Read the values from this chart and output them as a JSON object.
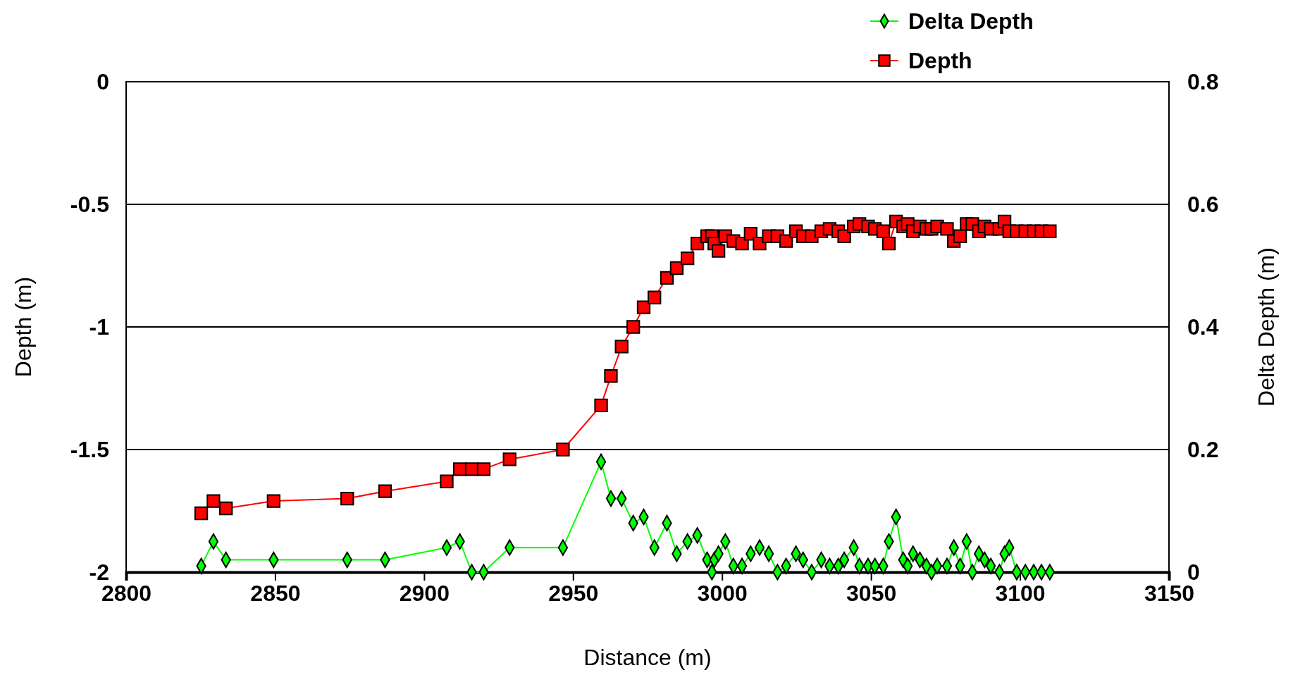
{
  "chart_data": {
    "type": "line",
    "xlabel": "Distance (m)",
    "ylabel": "Depth (m)",
    "y2label": "Delta Depth (m)",
    "xlim": [
      2800,
      3150
    ],
    "xticks": [
      2800,
      2850,
      2900,
      2950,
      3000,
      3050,
      3100,
      3150
    ],
    "ylim": [
      -2,
      0
    ],
    "yticks": [
      -2,
      -1.5,
      -1,
      -0.5,
      0
    ],
    "y2lim": [
      0,
      0.8
    ],
    "y2ticks": [
      0,
      0.2,
      0.4,
      0.6,
      0.8
    ],
    "grid": "y",
    "legend": "top right",
    "line_style": "solid",
    "series": [
      {
        "name": "Delta Depth",
        "color": "#00ff00",
        "axis": "y2",
        "marker": "diamond",
        "x": [
          2825.2,
          2829.3,
          2833.5,
          2849.5,
          2874.2,
          2886.9,
          2907.6,
          2912,
          2916,
          2920,
          2928.7,
          2946.6,
          2959.4,
          2962.7,
          2966.3,
          2970.2,
          2973.7,
          2977.3,
          2981.5,
          2984.8,
          2988.4,
          2991.7,
          2995.0,
          2996.6,
          2997.4,
          2998.8,
          3001.1,
          3003.8,
          3006.7,
          3009.6,
          3012.6,
          3015.7,
          3018.6,
          3021.5,
          3024.8,
          3027.2,
          3030.1,
          3033.3,
          3036.1,
          3039.0,
          3041.0,
          3044.2,
          3046.1,
          3049.0,
          3051.3,
          3054.1,
          3056.0,
          3058.4,
          3060.8,
          3062.3,
          3064.1,
          3066.4,
          3068.6,
          3070.3,
          3072.2,
          3075.5,
          3077.8,
          3079.9,
          3082.1,
          3084.0,
          3086.2,
          3088.1,
          3090.2,
          3093.1,
          3094.8,
          3096.4,
          3098.9,
          3101.8,
          3104.6,
          3107.2,
          3110.0
        ],
        "values": [
          0.01,
          0.05,
          0.02,
          0.02,
          0.02,
          0.02,
          0.04,
          0.05,
          0,
          0,
          0.04,
          0.04,
          0.18,
          0.12,
          0.12,
          0.08,
          0.09,
          0.04,
          0.08,
          0.03,
          0.05,
          0.06,
          0.02,
          0,
          0.02,
          0.03,
          0.05,
          0.01,
          0.01,
          0.03,
          0.04,
          0.03,
          0,
          0.01,
          0.03,
          0.02,
          0,
          0.02,
          0.01,
          0.01,
          0.02,
          0.04,
          0.01,
          0.01,
          0.01,
          0.01,
          0.05,
          0.09,
          0.02,
          0.01,
          0.03,
          0.02,
          0.01,
          0,
          0.01,
          0.01,
          0.04,
          0.01,
          0.05,
          0,
          0.03,
          0.02,
          0.01,
          0,
          0.03,
          0.04,
          0,
          0,
          0,
          0,
          0
        ]
      },
      {
        "name": "Depth",
        "color": "#ff0000",
        "marker": "square",
        "x": [
          2825.2,
          2829.3,
          2833.5,
          2849.5,
          2874.2,
          2886.9,
          2907.6,
          2912,
          2916,
          2920,
          2928.7,
          2946.6,
          2959.4,
          2962.7,
          2966.3,
          2970.2,
          2973.7,
          2977.3,
          2981.5,
          2984.8,
          2988.4,
          2991.7,
          2995.0,
          2996.6,
          2997.4,
          2998.8,
          3001.1,
          3003.8,
          3006.7,
          3009.6,
          3012.6,
          3015.7,
          3018.6,
          3021.5,
          3024.8,
          3027.2,
          3030.1,
          3033.3,
          3036.1,
          3039.0,
          3041.0,
          3044.2,
          3046.1,
          3049.0,
          3051.3,
          3054.1,
          3056.0,
          3058.4,
          3060.8,
          3062.3,
          3064.1,
          3066.4,
          3068.6,
          3070.3,
          3072.2,
          3075.5,
          3077.8,
          3079.9,
          3082.1,
          3084.0,
          3086.2,
          3088.1,
          3090.2,
          3093.1,
          3094.8,
          3096.4,
          3098.9,
          3101.8,
          3104.6,
          3107.2,
          3110.0
        ],
        "values": [
          -1.76,
          -1.71,
          -1.74,
          -1.71,
          -1.7,
          -1.67,
          -1.63,
          -1.58,
          -1.58,
          -1.58,
          -1.54,
          -1.5,
          -1.32,
          -1.2,
          -1.08,
          -1.0,
          -0.92,
          -0.88,
          -0.8,
          -0.76,
          -0.72,
          -0.66,
          -0.63,
          -0.63,
          -0.66,
          -0.69,
          -0.63,
          -0.65,
          -0.66,
          -0.62,
          -0.66,
          -0.63,
          -0.63,
          -0.65,
          -0.61,
          -0.63,
          -0.63,
          -0.61,
          -0.6,
          -0.61,
          -0.63,
          -0.59,
          -0.58,
          -0.59,
          -0.6,
          -0.61,
          -0.66,
          -0.57,
          -0.59,
          -0.58,
          -0.61,
          -0.59,
          -0.6,
          -0.6,
          -0.59,
          -0.6,
          -0.65,
          -0.63,
          -0.58,
          -0.58,
          -0.61,
          -0.59,
          -0.6,
          -0.6,
          -0.57,
          -0.61,
          -0.61,
          -0.61,
          -0.61,
          -0.61,
          -0.61
        ]
      }
    ]
  }
}
